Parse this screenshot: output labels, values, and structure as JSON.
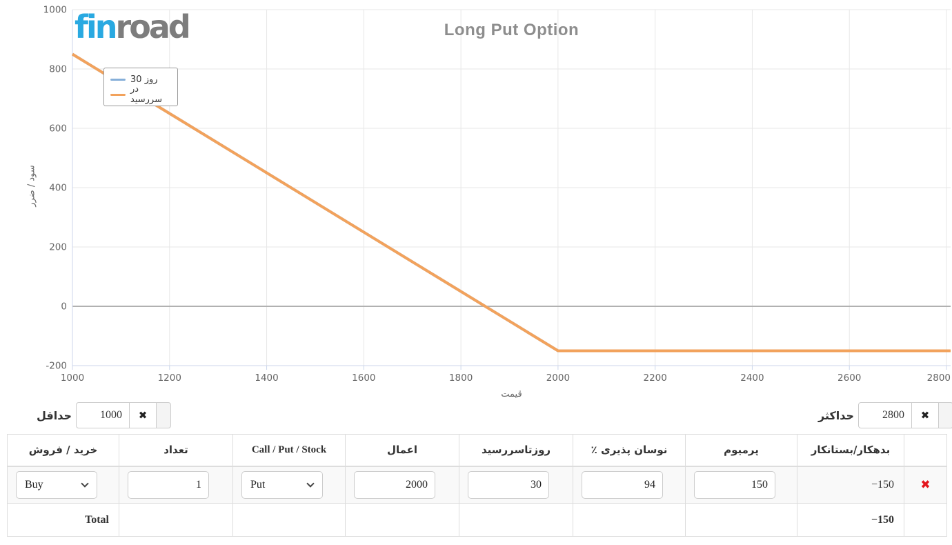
{
  "logo": {
    "fin": "fin",
    "road": "road"
  },
  "chart_data": {
    "type": "line",
    "title": "Long Put Option",
    "xlabel": "قیمت",
    "ylabel": "سود / ضرر",
    "xlim": [
      1000,
      2800
    ],
    "ylim": [
      -200,
      1000
    ],
    "xticks": [
      1000,
      1200,
      1400,
      1600,
      1800,
      2000,
      2200,
      2400,
      2600,
      2800
    ],
    "yticks": [
      -200,
      0,
      200,
      400,
      600,
      800,
      1000
    ],
    "grid": true,
    "zero_line": 0,
    "legend_position": "top-left",
    "series": [
      {
        "name": "30 روز",
        "color": "#86afd9",
        "points": [
          [
            1000,
            850
          ],
          [
            2000,
            -150
          ],
          [
            2800,
            -150
          ]
        ]
      },
      {
        "name": "در سررسید",
        "color": "#f2a25c",
        "points": [
          [
            1000,
            850
          ],
          [
            2000,
            -150
          ],
          [
            2800,
            -150
          ]
        ]
      }
    ]
  },
  "controls": {
    "min_label": "حداقل",
    "min_value": "1000",
    "max_label": "حداکثر",
    "max_value": "2800",
    "clear_icon": "✖"
  },
  "table": {
    "headers": [
      "خرید / فروش",
      "تعداد",
      "Call / Put / Stock",
      "اعمال",
      "روزتاسررسید",
      "٪ نوسان پذیری",
      "پرمیوم",
      "بدهکار/بستانکار",
      ""
    ],
    "row": {
      "side": "Buy",
      "qty": "1",
      "type": "Put",
      "strike": "2000",
      "days": "30",
      "volatility": "94",
      "premium": "150",
      "debit": "−150",
      "delete_icon": "✖"
    },
    "total": {
      "label": "Total",
      "debit": "−150"
    }
  }
}
